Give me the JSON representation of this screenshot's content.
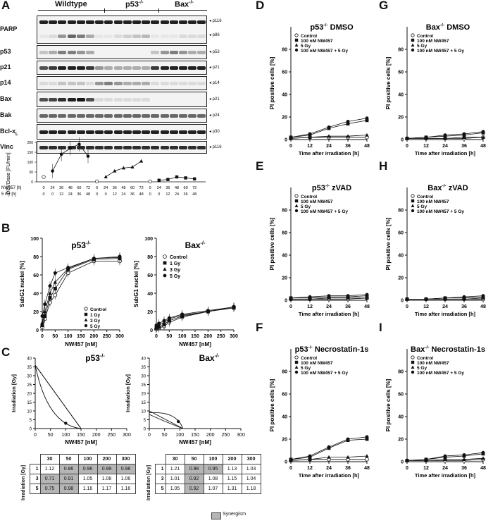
{
  "panels": {
    "A": "A",
    "B": "B",
    "C": "C",
    "D": "D",
    "E": "E",
    "F": "F",
    "G": "G",
    "H": "H",
    "I": "I"
  },
  "blot": {
    "groups": [
      "Wildtype",
      "p53-/-",
      "Bax-/-"
    ],
    "group_sup": [
      "",
      "-/-",
      "-/-"
    ],
    "group_base": [
      "Wildtype",
      "p53",
      "Bax"
    ],
    "rows": [
      {
        "label": "PARP",
        "bands": [
          "p116",
          "p86"
        ]
      },
      {
        "label": "p53",
        "bands": [
          "p53"
        ]
      },
      {
        "label": "p21",
        "bands": [
          "p21"
        ]
      },
      {
        "label": "p14",
        "bands": [
          "p14"
        ]
      },
      {
        "label": "Bax",
        "bands": [
          "p21"
        ]
      },
      {
        "label": "Bak",
        "bands": [
          "p24"
        ]
      },
      {
        "label": "Bcl-xL",
        "bands": [
          "p30"
        ]
      },
      {
        "label": "Vinc",
        "bands": [
          "p116"
        ]
      }
    ],
    "bcl_label_main": "Bcl-x",
    "bcl_label_sub": "L"
  },
  "devd": {
    "ylabel": "DEVDase [FU/min]",
    "row1_label": "NW457 [h]",
    "row2_label": "5 Gy [h]",
    "row1": [
      "0",
      "24",
      "36",
      "48",
      "60",
      "72",
      "0",
      "24",
      "36",
      "48",
      "60",
      "72",
      "0",
      "24",
      "36",
      "48",
      "60",
      "72"
    ],
    "row2": [
      "0",
      "0",
      "12",
      "24",
      "36",
      "48",
      "0",
      "0",
      "12",
      "24",
      "36",
      "48",
      "0",
      "0",
      "12",
      "24",
      "36",
      "48"
    ],
    "wt_values": [
      25,
      55,
      140,
      170,
      190,
      130
    ],
    "p53_values": [
      2,
      25,
      55,
      70,
      75,
      105
    ],
    "bax_values": [
      2,
      8,
      12,
      25,
      20,
      15
    ]
  },
  "chart_data": [
    {
      "type": "line",
      "panel": "B",
      "title": "p53-/-",
      "xlabel": "NW457 [nM]",
      "ylabel": "SubG1 nuclei [%]",
      "x": [
        0,
        10,
        30,
        50,
        100,
        200,
        300
      ],
      "xlim": [
        0,
        300
      ],
      "ylim": [
        0,
        100
      ],
      "xticks": [
        "0",
        "50",
        "100",
        "150",
        "200",
        "250",
        "300"
      ],
      "yticks": [
        "0",
        "20",
        "40",
        "60",
        "80",
        "100"
      ],
      "legend": [
        "Control",
        "1 Gy",
        "3 Gy",
        "5 Gy"
      ],
      "series": [
        {
          "name": "Control",
          "values": [
            3,
            12,
            30,
            38,
            62,
            75,
            75
          ]
        },
        {
          "name": "1 Gy",
          "values": [
            5,
            15,
            35,
            45,
            66,
            77,
            78
          ]
        },
        {
          "name": "3 Gy",
          "values": [
            8,
            20,
            40,
            52,
            67,
            78,
            79
          ]
        },
        {
          "name": "5 Gy",
          "values": [
            15,
            28,
            48,
            62,
            68,
            78,
            80
          ]
        }
      ]
    },
    {
      "type": "line",
      "panel": "B",
      "title": "Bax-/-",
      "xlabel": "NW457 [nM]",
      "ylabel": "SubG1 nuclei [%]",
      "x": [
        0,
        10,
        30,
        50,
        100,
        200,
        300
      ],
      "xlim": [
        0,
        300
      ],
      "ylim": [
        0,
        100
      ],
      "xticks": [
        "0",
        "50",
        "100",
        "150",
        "200",
        "250",
        "300"
      ],
      "yticks": [
        "0",
        "20",
        "40",
        "60",
        "80",
        "100"
      ],
      "legend": [
        "Control",
        "1 Gy",
        "3 Gy",
        "5 Gy"
      ],
      "series": [
        {
          "name": "Control",
          "values": [
            1,
            2,
            4,
            8,
            14,
            20,
            25
          ]
        },
        {
          "name": "1 Gy",
          "values": [
            2,
            3,
            6,
            10,
            15,
            20,
            24
          ]
        },
        {
          "name": "3 Gy",
          "values": [
            3,
            5,
            8,
            12,
            16,
            20,
            25
          ]
        },
        {
          "name": "5 Gy",
          "values": [
            5,
            7,
            10,
            13,
            17,
            21,
            25
          ]
        }
      ]
    },
    {
      "type": "line",
      "panel": "C",
      "title": "p53-/-",
      "xlabel": "NW457 [nM]",
      "ylabel": "Irradiation [Gy]",
      "xlim": [
        0,
        300
      ],
      "ylim": [
        0,
        40
      ],
      "xticks": [
        "0",
        "50",
        "100",
        "150",
        "200",
        "250",
        "300"
      ],
      "yticks": [
        "0",
        "5",
        "10",
        "15",
        "20",
        "25",
        "30",
        "35",
        "40"
      ],
      "isobole_point": [
        100,
        3
      ],
      "curves": [
        {
          "x": [
            0,
            150
          ],
          "y": [
            36,
            0
          ],
          "shape": "line"
        },
        {
          "x": [
            0,
            40,
            100,
            150
          ],
          "y": [
            36,
            20,
            5,
            0
          ],
          "shape": "concave"
        },
        {
          "x": [
            0,
            75,
            150
          ],
          "y": [
            36,
            18,
            0
          ],
          "shape": "near-line"
        }
      ]
    },
    {
      "type": "line",
      "panel": "C",
      "title": "Bax-/-",
      "xlabel": "NW457 [nM]",
      "ylabel": "Irradiation [Gy]",
      "xlim": [
        0,
        300
      ],
      "ylim": [
        0,
        40
      ],
      "xticks": [
        "0",
        "50",
        "100",
        "150",
        "200",
        "250",
        "300"
      ],
      "yticks": [
        "0",
        "5",
        "10",
        "15",
        "20",
        "25",
        "30",
        "35",
        "40"
      ],
      "isobole_point": [
        95,
        4
      ],
      "curves": [
        {
          "x": [
            0,
            110
          ],
          "y": [
            10,
            0
          ],
          "shape": "line"
        },
        {
          "x": [
            0,
            60,
            110
          ],
          "y": [
            9,
            6,
            0
          ],
          "shape": "convex"
        },
        {
          "x": [
            0,
            50,
            110
          ],
          "y": [
            8,
            4,
            0
          ],
          "shape": "near-line"
        }
      ]
    },
    {
      "type": "line",
      "panel": "D",
      "title": "p53-/- DMSO",
      "xlabel": "Time after irradiation [h]",
      "ylabel": "PI positive cells [%]",
      "x": [
        0,
        12,
        24,
        36,
        48
      ],
      "ylim": [
        0,
        100
      ],
      "series": [
        {
          "name": "Control",
          "values": [
            1,
            2,
            2,
            2,
            2
          ]
        },
        {
          "name": "100 nM NW457",
          "values": [
            2,
            4,
            10,
            14,
            17
          ]
        },
        {
          "name": "5 Gy",
          "values": [
            1,
            2,
            3,
            3,
            4
          ]
        },
        {
          "name": "100 nM NW457 + 5 Gy",
          "values": [
            2,
            5,
            11,
            16,
            19
          ]
        }
      ]
    },
    {
      "type": "line",
      "panel": "E",
      "title": "p53-/- zVAD",
      "xlabel": "Time after irradiation [h]",
      "ylabel": "PI positive cells [%]",
      "x": [
        0,
        12,
        24,
        36,
        48
      ],
      "ylim": [
        0,
        100
      ],
      "series": [
        {
          "name": "Control",
          "values": [
            1,
            1,
            1,
            1,
            2
          ]
        },
        {
          "name": "100 nM NW457",
          "values": [
            2,
            2,
            3,
            3,
            4
          ]
        },
        {
          "name": "5 Gy",
          "values": [
            1,
            1,
            2,
            2,
            2
          ]
        },
        {
          "name": "100 nM NW457 + 5 Gy",
          "values": [
            2,
            3,
            4,
            4,
            5
          ]
        }
      ]
    },
    {
      "type": "line",
      "panel": "F",
      "title": "p53-/- Necrostatin-1s",
      "xlabel": "Time after irradiation [h]",
      "ylabel": "PI positive cells [%]",
      "x": [
        0,
        12,
        24,
        36,
        48
      ],
      "ylim": [
        0,
        100
      ],
      "series": [
        {
          "name": "Control",
          "values": [
            1,
            2,
            2,
            2,
            2
          ]
        },
        {
          "name": "100 nM NW457",
          "values": [
            2,
            4,
            12,
            19,
            20
          ]
        },
        {
          "name": "5 Gy",
          "values": [
            1,
            2,
            4,
            4,
            5
          ]
        },
        {
          "name": "100 nM NW457 + 5 Gy",
          "values": [
            2,
            5,
            13,
            20,
            22
          ]
        }
      ]
    },
    {
      "type": "line",
      "panel": "G",
      "title": "Bax-/- DMSO",
      "xlabel": "Time after irradiation [h]",
      "ylabel": "PI positive cells [%]",
      "x": [
        0,
        12,
        24,
        36,
        48
      ],
      "ylim": [
        0,
        100
      ],
      "series": [
        {
          "name": "Control",
          "values": [
            1,
            1,
            1,
            1,
            2
          ]
        },
        {
          "name": "100 nM NW457",
          "values": [
            1,
            2,
            3,
            4,
            6
          ]
        },
        {
          "name": "5 Gy",
          "values": [
            1,
            1,
            1,
            2,
            2
          ]
        },
        {
          "name": "100 nM NW457 + 5 Gy",
          "values": [
            1,
            2,
            4,
            5,
            7
          ]
        }
      ]
    },
    {
      "type": "line",
      "panel": "H",
      "title": "Bax-/- zVAD",
      "xlabel": "Time after irradiation [h]",
      "ylabel": "PI positive cells [%]",
      "x": [
        0,
        12,
        24,
        36,
        48
      ],
      "ylim": [
        0,
        100
      ],
      "series": [
        {
          "name": "Control",
          "values": [
            1,
            1,
            1,
            1,
            1
          ]
        },
        {
          "name": "100 nM NW457",
          "values": [
            1,
            1,
            2,
            2,
            3
          ]
        },
        {
          "name": "5 Gy",
          "values": [
            1,
            1,
            1,
            1,
            2
          ]
        },
        {
          "name": "100 nM NW457 + 5 Gy",
          "values": [
            1,
            1,
            2,
            3,
            4
          ]
        }
      ]
    },
    {
      "type": "line",
      "panel": "I",
      "title": "Bax-/- Necrostatin-1s",
      "xlabel": "Time after irradiation [h]",
      "ylabel": "PI positive cells [%]",
      "x": [
        0,
        12,
        24,
        36,
        48
      ],
      "ylim": [
        0,
        100
      ],
      "series": [
        {
          "name": "Control",
          "values": [
            1,
            1,
            1,
            1,
            2
          ]
        },
        {
          "name": "100 nM NW457",
          "values": [
            1,
            2,
            4,
            5,
            7
          ]
        },
        {
          "name": "5 Gy",
          "values": [
            1,
            1,
            2,
            2,
            3
          ]
        },
        {
          "name": "100 nM NW457 + 5 Gy",
          "values": [
            1,
            2,
            5,
            6,
            8
          ]
        }
      ]
    }
  ],
  "ts_common": {
    "xticks": [
      "0",
      "12",
      "24",
      "36",
      "48"
    ],
    "yticks": [
      "0",
      "20",
      "40",
      "60",
      "80"
    ],
    "legend": [
      "Control",
      "100 nM NW457",
      "5 Gy",
      "100 nM NW457 + 5 Gy"
    ]
  },
  "titles": {
    "B_left_base": "p53",
    "B_right_base": "Bax",
    "sup": "-/-",
    "D_base": "p53",
    "D_suffix": "DMSO",
    "E_base": "p53",
    "E_suffix": "zVAD",
    "F_base": "p53",
    "F_suffix": "Necrostatin-1s",
    "G_base": "Bax",
    "G_suffix": "DMSO",
    "H_base": "Bax",
    "H_suffix": "zVAD",
    "I_base": "Bax",
    "I_suffix": "Necrostatin-1s"
  },
  "tables": {
    "col_headers": [
      "30",
      "50",
      "100",
      "200",
      "300"
    ],
    "row_headers": [
      "1",
      "3",
      "5"
    ],
    "ylabel": "Irradiation [Gy]",
    "left": [
      [
        "1.12",
        "0.86",
        "0.96",
        "0.99",
        "0.98"
      ],
      [
        "0.71",
        "0.91",
        "1.05",
        "1.08",
        "1.06"
      ],
      [
        "0.75",
        "0.98",
        "1.16",
        "1.17",
        "1.16"
      ]
    ],
    "left_syn": [
      [
        false,
        true,
        true,
        true,
        true
      ],
      [
        true,
        true,
        false,
        false,
        false
      ],
      [
        true,
        true,
        false,
        false,
        false
      ]
    ],
    "right": [
      [
        "1.21",
        "0.98",
        "0.95",
        "1.13",
        "1.03"
      ],
      [
        "1.01",
        "0.92",
        "1.08",
        "1.15",
        "1.04"
      ],
      [
        "1.05",
        "0.92",
        "1.07",
        "1.31",
        "1.18"
      ]
    ],
    "right_syn": [
      [
        false,
        true,
        true,
        false,
        false
      ],
      [
        false,
        true,
        false,
        false,
        false
      ],
      [
        false,
        true,
        false,
        false,
        false
      ]
    ],
    "legend": "Synergism"
  },
  "colors": {
    "synergism": "#b5b5b5",
    "ink": "#111111"
  }
}
